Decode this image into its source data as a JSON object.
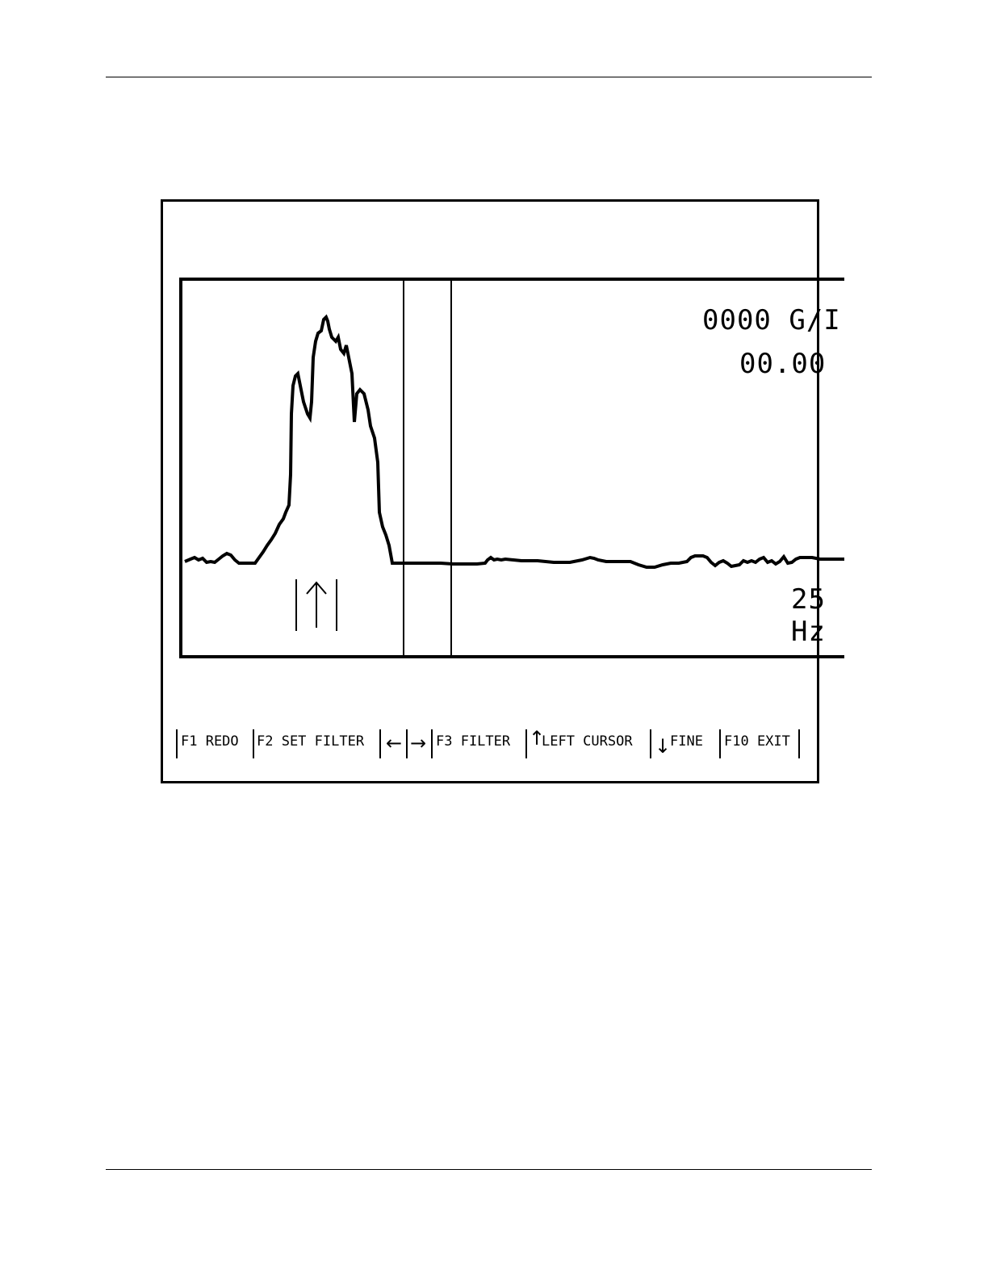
{
  "screen": {
    "readouts": {
      "gain": "0000 G/I",
      "value": "00.00",
      "frequency": "25",
      "unit": "Hz"
    },
    "marker_icon": "up-arrow-icon",
    "menu": {
      "f1_label": "F1  REDO",
      "f2_label": "F2 SET FILTER",
      "left_arrow": "←",
      "right_arrow": "→",
      "f3_label": "F3  FILTER",
      "up_arrow": "↑",
      "left_cursor_label": "LEFT  CURSOR",
      "down_arrow": "↓",
      "fine_label": "FINE",
      "f10_label": "F10 EXIT"
    }
  }
}
